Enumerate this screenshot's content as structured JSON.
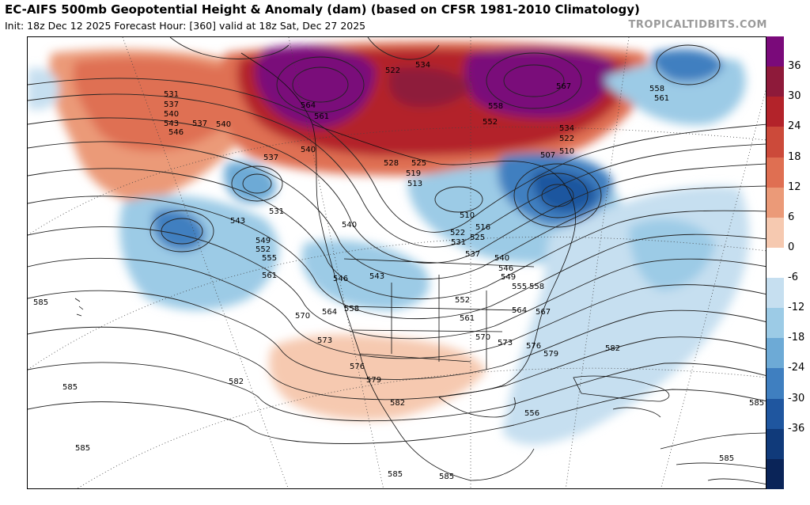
{
  "header": {
    "title": "EC-AIFS 500mb Geopotential Height & Anomaly (dam) (based on CFSR 1981-2010 Climatology)",
    "subtitle": "Init: 18z Dec 12 2025   Forecast Hour: [360]   valid at 18z Sat, Dec 27 2025",
    "credit": "TROPICALTIDBITS.COM"
  },
  "colorbar": {
    "labels": [
      "36",
      "30",
      "24",
      "18",
      "12",
      "6",
      "0",
      "-6",
      "-12",
      "-18",
      "-24",
      "-30",
      "-36"
    ],
    "colors": [
      "#7a0a7a",
      "#8e1a3a",
      "#b3232a",
      "#cc4a3a",
      "#df6f52",
      "#eb9a78",
      "#f6c9b0",
      "#ffffff",
      "#c6dff0",
      "#9ccbe6",
      "#6daad6",
      "#3f7fc0",
      "#1f569f",
      "#103a7a",
      "#0a2458"
    ]
  },
  "contours": [
    "522",
    "534",
    "531",
    "537",
    "540",
    "543",
    "546",
    "564",
    "561",
    "567",
    "558",
    "552",
    "534",
    "522",
    "510",
    "507",
    "537",
    "540",
    "549",
    "552",
    "555",
    "561",
    "531",
    "543",
    "540",
    "537",
    "540",
    "528",
    "525",
    "519",
    "513",
    "510",
    "516",
    "522",
    "525",
    "531",
    "537",
    "540",
    "546",
    "549",
    "543",
    "546",
    "555",
    "558",
    "552",
    "564",
    "567",
    "570",
    "564",
    "558",
    "561",
    "570",
    "573",
    "573",
    "576",
    "579",
    "582",
    "576",
    "579",
    "582",
    "582",
    "585",
    "585",
    "585",
    "585",
    "585",
    "585",
    "585",
    "556",
    "558",
    "561"
  ]
}
